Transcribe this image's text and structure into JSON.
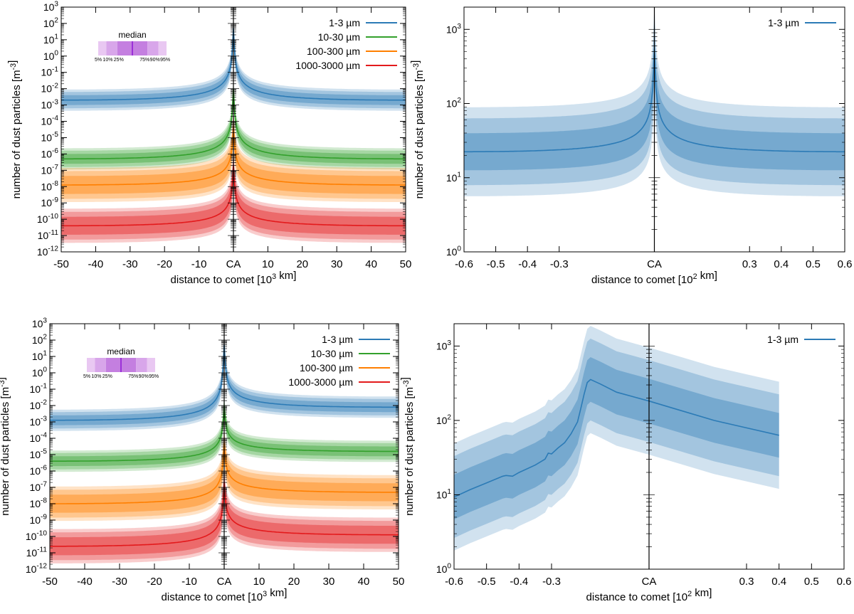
{
  "figure": {
    "ca_label": "CA",
    "legend_box": {
      "title": "median",
      "percentiles": [
        "5%",
        "10%",
        "25%",
        "75%",
        "90%",
        "95%"
      ],
      "colors": [
        "#e9c8f2",
        "#d8a6ea",
        "#c47fe0",
        "#9b30d8"
      ]
    }
  },
  "chart_data": [
    {
      "type": "area",
      "title": "",
      "xlabel": "distance to comet [10^3 km]",
      "ylabel": "number of dust particles [m^-3]",
      "xlim": [
        -50,
        50
      ],
      "ylim_log10": [
        -12,
        3
      ],
      "xticks": [
        -50,
        -40,
        -30,
        -20,
        -10,
        0,
        10,
        20,
        30,
        40,
        50
      ],
      "xtick_labels": [
        "-50",
        "-40",
        "-30",
        "-20",
        "-10",
        "CA",
        "10",
        "20",
        "30",
        "40",
        "50"
      ],
      "yticks_log10": [
        -12,
        -11,
        -10,
        -9,
        -8,
        -7,
        -6,
        -5,
        -4,
        -3,
        -2,
        -1,
        0,
        1,
        2,
        3
      ],
      "ytick_labels": [
        "10^-12",
        "10^-11",
        "10^-10",
        "10^-9",
        "10^-8",
        "10^-7",
        "10^-6",
        "10^-5",
        "10^-4",
        "10^-3",
        "10^-2",
        "10^-1",
        "10^0",
        "10^1",
        "10^2",
        "10^3"
      ],
      "legend": "top-right",
      "percentile_legend": true,
      "series": [
        {
          "name": "1-3 µm",
          "color": "#2c7bb6",
          "edge_log10": -2.7,
          "peak_log10": 1.7,
          "edge_right_log10": -2.7,
          "band_half_widths_log10": [
            0.3,
            0.5,
            0.65
          ]
        },
        {
          "name": "10-30 µm",
          "color": "#33a02c",
          "edge_log10": -6.3,
          "peak_log10": -2.0,
          "edge_right_log10": -6.3,
          "band_half_widths_log10": [
            0.3,
            0.5,
            0.65
          ]
        },
        {
          "name": "100-300 µm",
          "color": "#ff7f00",
          "edge_log10": -7.9,
          "peak_log10": -4.3,
          "edge_right_log10": -7.9,
          "band_half_widths_log10": [
            0.55,
            0.85,
            1.05
          ]
        },
        {
          "name": "1000-3000 µm",
          "color": "#e31a1c",
          "edge_log10": -10.4,
          "peak_log10": -6.7,
          "edge_right_log10": -10.4,
          "band_half_widths_log10": [
            0.55,
            0.85,
            1.05
          ]
        }
      ]
    },
    {
      "type": "area",
      "title": "",
      "xlabel": "distance to comet [10^2 km]",
      "ylabel": "number of dust particles [m^-3]",
      "xlim": [
        -0.6,
        0.6
      ],
      "ylim_log10": [
        0,
        3.3
      ],
      "xticks": [
        -0.6,
        -0.5,
        -0.4,
        -0.3,
        0,
        0.3,
        0.4,
        0.5,
        0.6
      ],
      "xtick_labels": [
        "-0.6",
        "-0.5",
        "-0.4",
        "-0.3",
        "CA",
        "0.3",
        "0.4",
        "0.5",
        "0.6"
      ],
      "yticks_log10": [
        0,
        1,
        2,
        3
      ],
      "ytick_labels": [
        "10^0",
        "10^1",
        "10^2",
        "10^3"
      ],
      "legend": "top-right",
      "series": [
        {
          "name": "1-3 µm",
          "color": "#2c7bb6",
          "edge_log10": 1.35,
          "peak_log10": 2.73,
          "edge_right_log10": 1.35,
          "band_half_widths_log10": [
            0.25,
            0.45,
            0.6
          ]
        }
      ]
    },
    {
      "type": "area",
      "title": "",
      "xlabel": "distance to comet [10^3 km]",
      "ylabel": "number of dust particles [m^-3]",
      "xlim": [
        -50,
        50
      ],
      "ylim_log10": [
        -12,
        3
      ],
      "xticks": [
        -50,
        -40,
        -30,
        -20,
        -10,
        0,
        10,
        20,
        30,
        40,
        50
      ],
      "xtick_labels": [
        "-50",
        "-40",
        "-30",
        "-20",
        "-10",
        "CA",
        "10",
        "20",
        "30",
        "40",
        "50"
      ],
      "yticks_log10": [
        -12,
        -11,
        -10,
        -9,
        -8,
        -7,
        -6,
        -5,
        -4,
        -3,
        -2,
        -1,
        0,
        1,
        2,
        3
      ],
      "ytick_labels": [
        "10^-12",
        "10^-11",
        "10^-10",
        "10^-9",
        "10^-8",
        "10^-7",
        "10^-6",
        "10^-5",
        "10^-4",
        "10^-3",
        "10^-2",
        "10^-1",
        "10^0",
        "10^1",
        "10^2",
        "10^3"
      ],
      "legend": "top-right",
      "percentile_legend": true,
      "series": [
        {
          "name": "1-3 µm",
          "color": "#2c7bb6",
          "edge_log10": -2.9,
          "peak_log10": 1.7,
          "edge_right_log10": -2.1,
          "band_half_widths_log10": [
            0.3,
            0.5,
            0.65
          ]
        },
        {
          "name": "10-30 µm",
          "color": "#33a02c",
          "edge_log10": -5.4,
          "peak_log10": -2.0,
          "edge_right_log10": -4.8,
          "band_half_widths_log10": [
            0.3,
            0.5,
            0.65
          ]
        },
        {
          "name": "100-300 µm",
          "color": "#ff7f00",
          "edge_log10": -8.0,
          "peak_log10": -4.3,
          "edge_right_log10": -7.3,
          "band_half_widths_log10": [
            0.55,
            0.85,
            1.05
          ]
        },
        {
          "name": "1000-3000 µm",
          "color": "#e31a1c",
          "edge_log10": -10.6,
          "peak_log10": -6.7,
          "edge_right_log10": -9.9,
          "band_half_widths_log10": [
            0.55,
            0.85,
            1.05
          ]
        }
      ]
    },
    {
      "type": "area",
      "title": "",
      "xlabel": "distance to comet [10^2 km]",
      "ylabel": "number of dust particles [m^-3]",
      "xlim": [
        -0.6,
        0.6
      ],
      "ylim_log10": [
        0,
        3.3
      ],
      "xticks": [
        -0.6,
        -0.5,
        -0.4,
        -0.3,
        0,
        0.3,
        0.4,
        0.5,
        0.6
      ],
      "xtick_labels": [
        "-0.6",
        "-0.5",
        "-0.4",
        "-0.3",
        "CA",
        "0.3",
        "0.4",
        "0.5",
        "0.6"
      ],
      "yticks_log10": [
        0,
        1,
        2,
        3
      ],
      "ytick_labels": [
        "10^0",
        "10^1",
        "10^2",
        "10^3"
      ],
      "legend": "top-right",
      "series": [
        {
          "name": "1-3 µm",
          "color": "#2c7bb6",
          "points": [
            [
              -0.6,
              0.97
            ],
            [
              -0.55,
              1.07
            ],
            [
              -0.5,
              1.16
            ],
            [
              -0.45,
              1.25
            ],
            [
              -0.44,
              1.26
            ],
            [
              -0.42,
              1.25
            ],
            [
              -0.4,
              1.3
            ],
            [
              -0.35,
              1.4
            ],
            [
              -0.32,
              1.48
            ],
            [
              -0.31,
              1.56
            ],
            [
              -0.3,
              1.55
            ],
            [
              -0.28,
              1.63
            ],
            [
              -0.26,
              1.7
            ],
            [
              -0.24,
              1.82
            ],
            [
              -0.22,
              1.98
            ],
            [
              -0.21,
              2.16
            ],
            [
              -0.2,
              2.35
            ],
            [
              -0.19,
              2.51
            ],
            [
              -0.18,
              2.55
            ],
            [
              -0.15,
              2.49
            ],
            [
              -0.1,
              2.38
            ],
            [
              0.0,
              2.26
            ],
            [
              0.1,
              2.13
            ],
            [
              0.2,
              2.0
            ],
            [
              0.3,
              1.9
            ],
            [
              0.4,
              1.8
            ]
          ],
          "band_half_widths_log10": [
            0.3,
            0.55,
            0.72
          ]
        }
      ]
    }
  ]
}
